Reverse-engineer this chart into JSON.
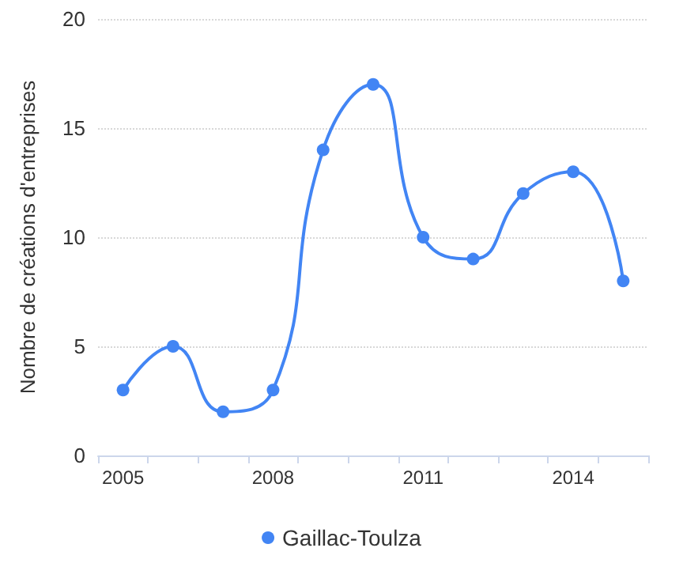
{
  "chart_data": {
    "type": "line",
    "ylabel": "Nombre de créations d'entreprises",
    "categories": [
      "2005",
      null,
      null,
      "2008",
      null,
      null,
      "2011",
      null,
      null,
      "2014",
      null
    ],
    "series": [
      {
        "name": "Gaillac-Toulza",
        "color": "#4285f4",
        "values": [
          3,
          5,
          2,
          3,
          14,
          17,
          10,
          9,
          12,
          13,
          8
        ]
      }
    ],
    "ylim": [
      0,
      20
    ],
    "yticks": [
      0,
      5,
      10,
      15,
      20
    ],
    "grid": "y",
    "legend": "bottom",
    "marker": "circle",
    "line_style": "solid"
  }
}
